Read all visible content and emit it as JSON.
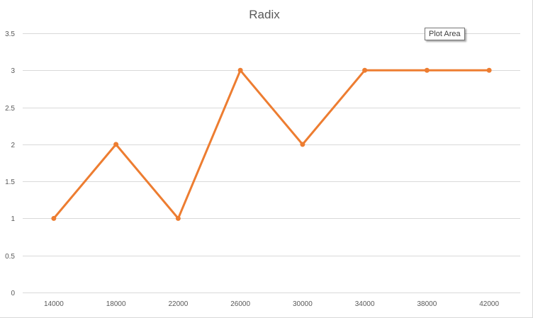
{
  "chart_data": {
    "type": "line",
    "title": "Radix",
    "xlabel": "",
    "ylabel": "",
    "categories": [
      "14000",
      "18000",
      "22000",
      "26000",
      "30000",
      "34000",
      "38000",
      "42000"
    ],
    "series": [
      {
        "values": [
          1,
          2,
          1,
          3,
          2,
          3,
          3,
          3
        ],
        "color": "#ED7D31"
      }
    ],
    "ylim": [
      0,
      3.5
    ],
    "yticks": [
      "0",
      "0.5",
      "1",
      "1.5",
      "2",
      "2.5",
      "3",
      "3.5"
    ],
    "grid": true,
    "legend": "none",
    "gridline_color": "#D9D9D9"
  },
  "tooltip": {
    "text": "Plot Area"
  }
}
